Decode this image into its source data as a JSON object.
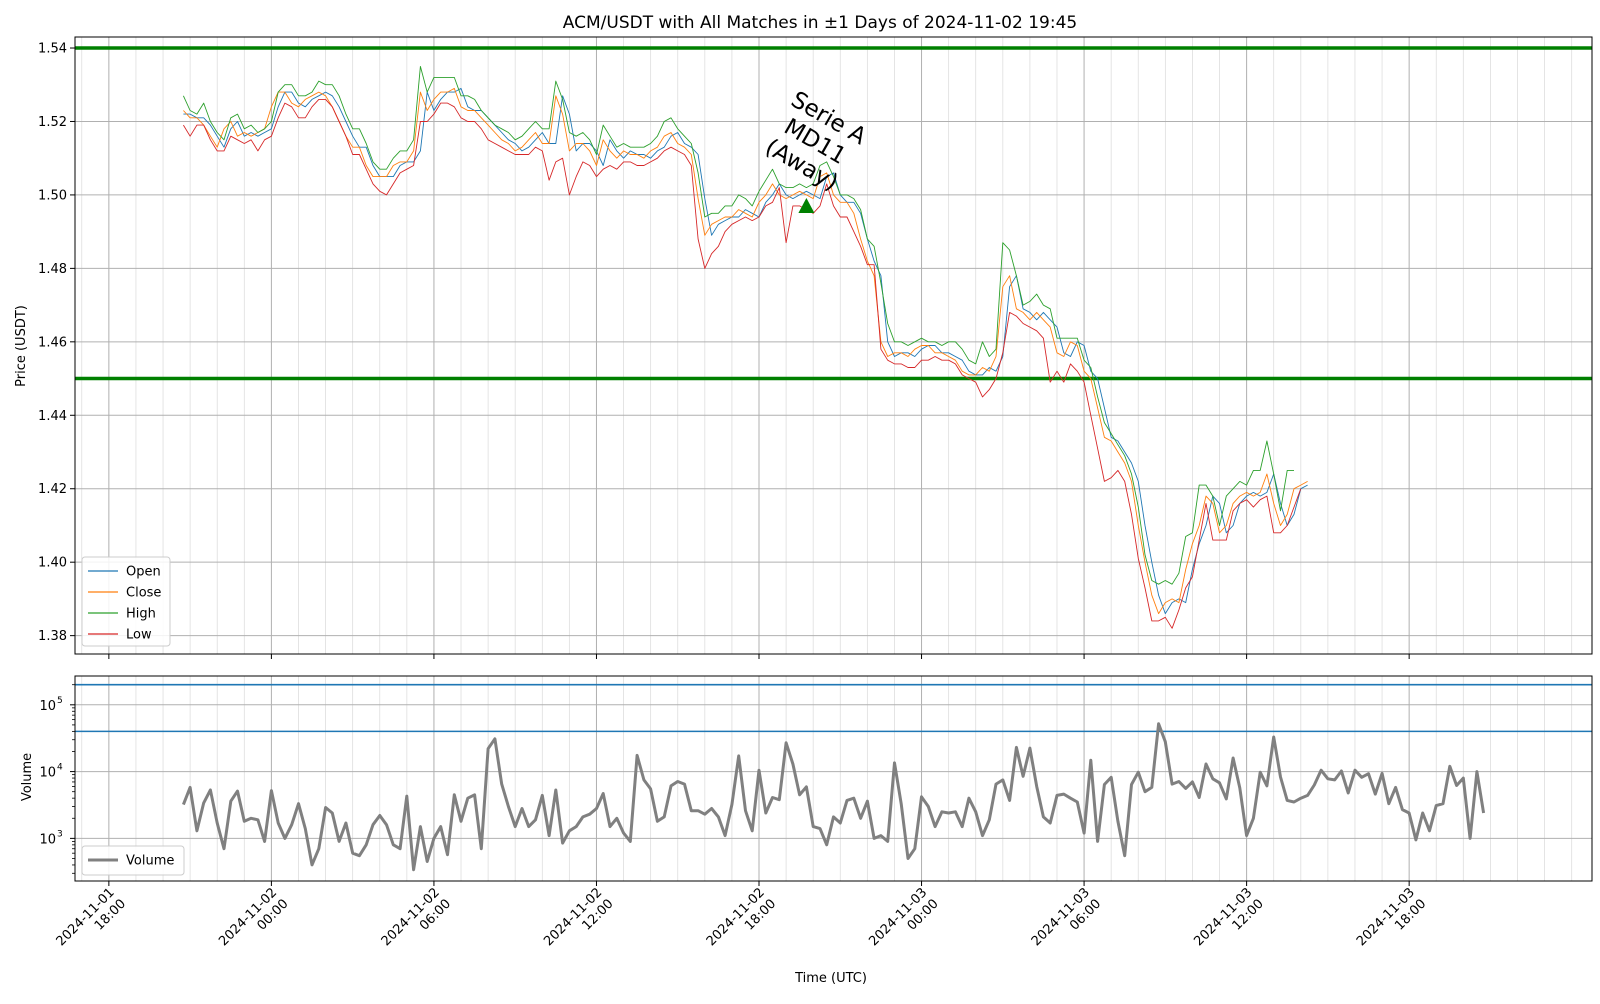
{
  "chart_data": [
    {
      "type": "line",
      "title": "ACM/USDT with All Matches in ±1 Days of 2024-11-02 19:45",
      "ylabel": "Price (USDT)",
      "ylim": [
        1.375,
        1.543
      ],
      "yticks": [
        1.38,
        1.4,
        1.42,
        1.44,
        1.46,
        1.48,
        1.5,
        1.52,
        1.54
      ],
      "ytick_labels": [
        "1.38",
        "1.40",
        "1.42",
        "1.44",
        "1.46",
        "1.48",
        "1.50",
        "1.52",
        "1.54"
      ],
      "x_start": "2024-11-01 20:45",
      "x_step_minutes": 15,
      "xlim": [
        "2024-11-01 16:45",
        "2024-11-04 00:45"
      ],
      "grid": true,
      "legend_placement": "lower-left",
      "colors": {
        "Open": "#1f77b4",
        "Close": "#ff7f0e",
        "High": "#2ca02c",
        "Low": "#d62728"
      },
      "hlines": [
        {
          "y": 1.54,
          "color": "#008000"
        },
        {
          "y": 1.45,
          "color": "#008000"
        }
      ],
      "annotation": {
        "text_lines": [
          "Serie A",
          "MD11",
          "(Away)"
        ],
        "x": "2024-11-02 19:45",
        "y": 1.497,
        "marker": "triangle-up",
        "color": "#008000"
      },
      "series": [
        {
          "name": "Open",
          "values": [
            1.522,
            1.522,
            1.521,
            1.521,
            1.519,
            1.516,
            1.513,
            1.518,
            1.52,
            1.516,
            1.517,
            1.516,
            1.517,
            1.518,
            1.524,
            1.528,
            1.528,
            1.525,
            1.524,
            1.526,
            1.527,
            1.528,
            1.527,
            1.524,
            1.52,
            1.516,
            1.513,
            1.513,
            1.508,
            1.505,
            1.505,
            1.505,
            1.508,
            1.509,
            1.509,
            1.512,
            1.528,
            1.523,
            1.526,
            1.528,
            1.528,
            1.529,
            1.524,
            1.523,
            1.523,
            1.521,
            1.519,
            1.517,
            1.515,
            1.514,
            1.512,
            1.513,
            1.515,
            1.517,
            1.514,
            1.514,
            1.527,
            1.522,
            1.512,
            1.514,
            1.514,
            1.512,
            1.508,
            1.515,
            1.512,
            1.51,
            1.512,
            1.511,
            1.511,
            1.51,
            1.512,
            1.513,
            1.516,
            1.517,
            1.514,
            1.513,
            1.511,
            1.499,
            1.489,
            1.492,
            1.493,
            1.494,
            1.494,
            1.496,
            1.495,
            1.494,
            1.498,
            1.5,
            1.503,
            1.5,
            1.499,
            1.5,
            1.501,
            1.5,
            1.499,
            1.505,
            1.506,
            1.5,
            1.498,
            1.498,
            1.495,
            1.488,
            1.482,
            1.478,
            1.46,
            1.456,
            1.457,
            1.457,
            1.456,
            1.458,
            1.459,
            1.459,
            1.457,
            1.457,
            1.456,
            1.455,
            1.452,
            1.451,
            1.451,
            1.453,
            1.452,
            1.456,
            1.475,
            1.478,
            1.469,
            1.468,
            1.466,
            1.468,
            1.466,
            1.464,
            1.457,
            1.456,
            1.46,
            1.459,
            1.452,
            1.45,
            1.442,
            1.434,
            1.433,
            1.43,
            1.427,
            1.422,
            1.41,
            1.4,
            1.391,
            1.386,
            1.389,
            1.39,
            1.389,
            1.398,
            1.405,
            1.41,
            1.418,
            1.416,
            1.408,
            1.41,
            1.416,
            1.418,
            1.419,
            1.418,
            1.419,
            1.424,
            1.416,
            1.41,
            1.413,
            1.42,
            1.421
          ]
        },
        {
          "name": "Close",
          "values": [
            1.523,
            1.521,
            1.521,
            1.519,
            1.516,
            1.513,
            1.518,
            1.52,
            1.516,
            1.517,
            1.516,
            1.517,
            1.518,
            1.524,
            1.528,
            1.528,
            1.525,
            1.524,
            1.526,
            1.527,
            1.528,
            1.527,
            1.524,
            1.52,
            1.516,
            1.513,
            1.513,
            1.508,
            1.505,
            1.505,
            1.505,
            1.508,
            1.509,
            1.509,
            1.512,
            1.528,
            1.523,
            1.526,
            1.528,
            1.528,
            1.529,
            1.524,
            1.523,
            1.523,
            1.521,
            1.519,
            1.517,
            1.515,
            1.514,
            1.512,
            1.513,
            1.515,
            1.517,
            1.514,
            1.514,
            1.527,
            1.522,
            1.512,
            1.514,
            1.514,
            1.512,
            1.508,
            1.515,
            1.512,
            1.51,
            1.512,
            1.511,
            1.511,
            1.51,
            1.512,
            1.513,
            1.516,
            1.517,
            1.514,
            1.513,
            1.511,
            1.499,
            1.489,
            1.492,
            1.493,
            1.494,
            1.494,
            1.496,
            1.495,
            1.494,
            1.498,
            1.5,
            1.503,
            1.5,
            1.499,
            1.5,
            1.501,
            1.5,
            1.499,
            1.505,
            1.506,
            1.5,
            1.498,
            1.498,
            1.495,
            1.488,
            1.482,
            1.478,
            1.46,
            1.456,
            1.457,
            1.457,
            1.456,
            1.458,
            1.459,
            1.459,
            1.457,
            1.457,
            1.456,
            1.455,
            1.452,
            1.451,
            1.451,
            1.453,
            1.452,
            1.456,
            1.475,
            1.478,
            1.469,
            1.468,
            1.466,
            1.468,
            1.466,
            1.464,
            1.457,
            1.456,
            1.46,
            1.459,
            1.452,
            1.45,
            1.442,
            1.434,
            1.433,
            1.43,
            1.427,
            1.422,
            1.41,
            1.4,
            1.391,
            1.386,
            1.389,
            1.39,
            1.389,
            1.398,
            1.405,
            1.41,
            1.418,
            1.416,
            1.408,
            1.41,
            1.416,
            1.418,
            1.419,
            1.418,
            1.419,
            1.424,
            1.416,
            1.41,
            1.413,
            1.42,
            1.421,
            1.422
          ]
        },
        {
          "name": "High",
          "values": [
            1.527,
            1.523,
            1.522,
            1.525,
            1.52,
            1.517,
            1.515,
            1.521,
            1.522,
            1.518,
            1.519,
            1.517,
            1.518,
            1.52,
            1.528,
            1.53,
            1.53,
            1.527,
            1.527,
            1.528,
            1.531,
            1.53,
            1.53,
            1.527,
            1.522,
            1.518,
            1.518,
            1.514,
            1.509,
            1.507,
            1.507,
            1.51,
            1.512,
            1.512,
            1.515,
            1.535,
            1.528,
            1.532,
            1.532,
            1.532,
            1.532,
            1.527,
            1.527,
            1.526,
            1.523,
            1.521,
            1.519,
            1.518,
            1.517,
            1.515,
            1.516,
            1.518,
            1.52,
            1.518,
            1.518,
            1.531,
            1.526,
            1.517,
            1.516,
            1.517,
            1.515,
            1.511,
            1.519,
            1.516,
            1.513,
            1.514,
            1.513,
            1.513,
            1.513,
            1.514,
            1.516,
            1.52,
            1.521,
            1.518,
            1.516,
            1.514,
            1.506,
            1.494,
            1.495,
            1.495,
            1.497,
            1.497,
            1.5,
            1.499,
            1.497,
            1.501,
            1.504,
            1.507,
            1.503,
            1.502,
            1.502,
            1.503,
            1.502,
            1.503,
            1.508,
            1.509,
            1.505,
            1.5,
            1.5,
            1.499,
            1.496,
            1.488,
            1.486,
            1.476,
            1.465,
            1.46,
            1.46,
            1.459,
            1.46,
            1.461,
            1.46,
            1.46,
            1.459,
            1.46,
            1.46,
            1.458,
            1.455,
            1.454,
            1.46,
            1.456,
            1.458,
            1.487,
            1.485,
            1.478,
            1.47,
            1.471,
            1.473,
            1.47,
            1.469,
            1.461,
            1.461,
            1.461,
            1.461,
            1.455,
            1.453,
            1.445,
            1.438,
            1.435,
            1.432,
            1.429,
            1.424,
            1.415,
            1.402,
            1.395,
            1.394,
            1.395,
            1.394,
            1.397,
            1.407,
            1.408,
            1.421,
            1.421,
            1.418,
            1.41,
            1.418,
            1.42,
            1.422,
            1.421,
            1.425,
            1.425,
            1.433,
            1.424,
            1.414,
            1.425,
            1.425
          ]
        },
        {
          "name": "Low",
          "values": [
            1.519,
            1.516,
            1.519,
            1.519,
            1.515,
            1.512,
            1.512,
            1.516,
            1.515,
            1.514,
            1.515,
            1.512,
            1.515,
            1.516,
            1.521,
            1.525,
            1.524,
            1.521,
            1.521,
            1.524,
            1.526,
            1.526,
            1.524,
            1.52,
            1.516,
            1.511,
            1.511,
            1.507,
            1.503,
            1.501,
            1.5,
            1.503,
            1.506,
            1.507,
            1.508,
            1.52,
            1.52,
            1.522,
            1.525,
            1.525,
            1.524,
            1.521,
            1.52,
            1.52,
            1.518,
            1.515,
            1.514,
            1.513,
            1.512,
            1.511,
            1.511,
            1.511,
            1.513,
            1.512,
            1.504,
            1.509,
            1.51,
            1.5,
            1.505,
            1.509,
            1.508,
            1.505,
            1.507,
            1.508,
            1.507,
            1.509,
            1.509,
            1.508,
            1.508,
            1.509,
            1.51,
            1.512,
            1.513,
            1.512,
            1.511,
            1.508,
            1.488,
            1.48,
            1.484,
            1.486,
            1.49,
            1.492,
            1.493,
            1.494,
            1.493,
            1.494,
            1.497,
            1.498,
            1.502,
            1.487,
            1.497,
            1.497,
            1.496,
            1.495,
            1.497,
            1.503,
            1.497,
            1.494,
            1.494,
            1.49,
            1.486,
            1.481,
            1.481,
            1.458,
            1.455,
            1.454,
            1.454,
            1.453,
            1.453,
            1.455,
            1.455,
            1.456,
            1.455,
            1.455,
            1.454,
            1.451,
            1.45,
            1.449,
            1.445,
            1.447,
            1.45,
            1.457,
            1.468,
            1.467,
            1.465,
            1.464,
            1.463,
            1.461,
            1.449,
            1.452,
            1.449,
            1.454,
            1.452,
            1.449,
            1.44,
            1.431,
            1.422,
            1.423,
            1.425,
            1.422,
            1.413,
            1.401,
            1.393,
            1.384,
            1.384,
            1.385,
            1.382,
            1.387,
            1.393,
            1.396,
            1.406,
            1.416,
            1.406,
            1.406,
            1.406,
            1.414,
            1.416,
            1.417,
            1.415,
            1.417,
            1.418,
            1.408,
            1.408,
            1.41,
            1.415,
            1.42
          ]
        }
      ]
    },
    {
      "type": "line",
      "ylabel": "Volume",
      "xlabel": "Time (UTC)",
      "yscale": "log",
      "ylim": [
        230,
        270000
      ],
      "yticks": [
        1000,
        10000,
        100000
      ],
      "ytick_labels": [
        [
          "10",
          "3"
        ],
        [
          "10",
          "4"
        ],
        [
          "10",
          "5"
        ]
      ],
      "x_start": "2024-11-01 20:45",
      "x_step_minutes": 15,
      "xlim": [
        "2024-11-01 16:45",
        "2024-11-04 00:45"
      ],
      "xticks": [
        "2024-11-01 18:00",
        "2024-11-02 00:00",
        "2024-11-02 06:00",
        "2024-11-02 12:00",
        "2024-11-02 18:00",
        "2024-11-03 00:00",
        "2024-11-03 06:00",
        "2024-11-03 12:00",
        "2024-11-03 18:00"
      ],
      "xtick_labels": [
        [
          "2024-11-01",
          "18:00"
        ],
        [
          "2024-11-02",
          "00:00"
        ],
        [
          "2024-11-02",
          "06:00"
        ],
        [
          "2024-11-02",
          "12:00"
        ],
        [
          "2024-11-02",
          "18:00"
        ],
        [
          "2024-11-03",
          "00:00"
        ],
        [
          "2024-11-03",
          "06:00"
        ],
        [
          "2024-11-03",
          "12:00"
        ],
        [
          "2024-11-03",
          "18:00"
        ]
      ],
      "grid": true,
      "legend_placement": "lower-left",
      "colors": {
        "Volume": "#808080"
      },
      "hlines": [
        {
          "y": 200000,
          "color": "#1f77b4"
        },
        {
          "y": 40000,
          "color": "#1f77b4"
        }
      ],
      "series": [
        {
          "name": "Volume",
          "values": [
            3200,
            5800,
            1300,
            3400,
            5300,
            1700,
            700,
            3600,
            5100,
            1800,
            2000,
            1900,
            900,
            5200,
            1700,
            1000,
            1600,
            3300,
            1400,
            400,
            700,
            2900,
            2400,
            900,
            1700,
            600,
            550,
            800,
            1600,
            2200,
            1600,
            800,
            700,
            4300,
            340,
            1500,
            450,
            1000,
            1500,
            570,
            4500,
            1800,
            4000,
            4500,
            700,
            22000,
            31000,
            6500,
            3000,
            1500,
            2800,
            1500,
            1900,
            4400,
            1100,
            5300,
            850,
            1300,
            1500,
            2100,
            2300,
            2800,
            4700,
            1500,
            2000,
            1200,
            900,
            17500,
            7500,
            5500,
            1800,
            2100,
            6100,
            7100,
            6500,
            2600,
            2600,
            2300,
            2800,
            2100,
            1100,
            3200,
            17200,
            2600,
            1300,
            10500,
            2400,
            4100,
            3800,
            27000,
            13000,
            4500,
            5900,
            1500,
            1400,
            800,
            2100,
            1700,
            3700,
            4000,
            2000,
            3600,
            1000,
            1100,
            900,
            13500,
            3300,
            500,
            700,
            4200,
            3000,
            1500,
            2500,
            2400,
            2500,
            1500,
            4000,
            2500,
            1100,
            1900,
            6500,
            7500,
            3700,
            23000,
            8500,
            22500,
            6000,
            2100,
            1700,
            4400,
            4600,
            4000,
            3500,
            1200,
            14800,
            900,
            6400,
            8200,
            1800,
            550,
            6400,
            9800,
            5000,
            5800,
            52000,
            28000,
            6500,
            7100,
            5600,
            7000,
            4100,
            13000,
            7800,
            6800,
            3900,
            16000,
            5700,
            1100,
            2000,
            9800,
            6100,
            33000,
            8300,
            3700,
            3500,
            4000,
            4400,
            6300,
            10500,
            7800,
            7500,
            10200,
            4800,
            10500,
            8200,
            9300,
            4600,
            9400,
            3300,
            5800,
            2700,
            2400,
            950,
            2400,
            1300,
            3100,
            3300,
            12000,
            6200,
            8000,
            1000,
            10000,
            2400
          ]
        }
      ]
    }
  ]
}
